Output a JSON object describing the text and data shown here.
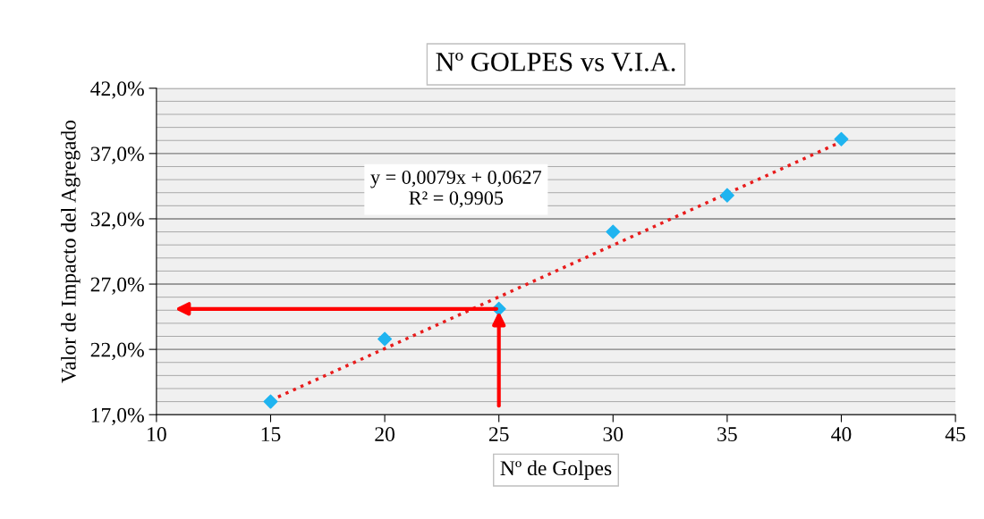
{
  "chart_data": {
    "type": "scatter",
    "title": "Nº GOLPES vs V.I.A.",
    "xlabel": "Nº de Golpes",
    "ylabel": "Valor de Impacto del Agregado",
    "x": [
      15,
      20,
      25,
      30,
      35,
      40
    ],
    "series": [
      {
        "color": "#1fb4f0",
        "marker": "diamond",
        "values": [
          18.0,
          22.8,
          25.1,
          31.0,
          33.8,
          38.1
        ]
      },
      {
        "type": "line",
        "color": "#e81c1c",
        "marker": "none",
        "line_style": "dotted",
        "x": [
          15,
          40
        ],
        "values": [
          18.1,
          37.9
        ]
      }
    ],
    "annotations": [
      "y = 0,0079x + 0,0627\nR² = 0,9905"
    ],
    "xlim": [
      10,
      45
    ],
    "xticks": [
      10,
      15,
      20,
      25,
      30,
      35,
      40,
      45
    ],
    "ylim": [
      17,
      42
    ],
    "yticks": [
      {
        "value": 17,
        "label": "17,0%"
      },
      {
        "value": 22,
        "label": "22,0%"
      },
      {
        "value": 27,
        "label": "27,0%"
      },
      {
        "value": 32,
        "label": "32,0%"
      },
      {
        "value": 37,
        "label": "37,0%"
      },
      {
        "value": 42,
        "label": "42,0%"
      }
    ],
    "grid": "y",
    "legend": false
  }
}
